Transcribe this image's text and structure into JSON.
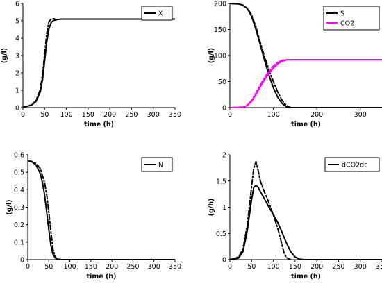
{
  "chart_data": [
    {
      "type": "line",
      "xlabel": "time (h)",
      "ylabel": "(g/l)",
      "xlim": [
        0,
        350
      ],
      "ylim": [
        0,
        6
      ],
      "xticks": [
        0,
        50,
        100,
        150,
        200,
        250,
        300,
        350
      ],
      "yticks": [
        0,
        1,
        2,
        3,
        4,
        5,
        6
      ],
      "legend_position": "top-right",
      "series": [
        {
          "name": "X",
          "style": "solid",
          "color": "#000000",
          "x": [
            0,
            10,
            20,
            30,
            40,
            45,
            50,
            55,
            60,
            65,
            70,
            80,
            90,
            100,
            150,
            200,
            250,
            300,
            350
          ],
          "y": [
            0.05,
            0.08,
            0.15,
            0.35,
            0.9,
            1.6,
            2.7,
            3.8,
            4.55,
            4.9,
            5.02,
            5.08,
            5.1,
            5.1,
            5.1,
            5.1,
            5.1,
            5.1,
            5.1
          ]
        },
        {
          "name": "",
          "style": "dashdot",
          "color": "#000000",
          "x": [
            0,
            10,
            20,
            30,
            40,
            45,
            50,
            55,
            60,
            65,
            70,
            75
          ],
          "y": [
            0.05,
            0.08,
            0.16,
            0.4,
            1.05,
            1.9,
            3.1,
            4.3,
            4.95,
            5.1,
            5.12,
            5.12
          ]
        }
      ]
    },
    {
      "type": "line",
      "xlabel": "time (h)",
      "ylabel": "(g/l)",
      "xlim": [
        0,
        350
      ],
      "ylim": [
        0,
        200
      ],
      "xticks": [
        0,
        100,
        200,
        300
      ],
      "yticks": [
        0,
        50,
        100,
        150,
        200
      ],
      "legend_position": "top-right",
      "series": [
        {
          "name": "S",
          "style": "solid",
          "color": "#000000",
          "x": [
            0,
            20,
            30,
            40,
            50,
            60,
            70,
            80,
            90,
            100,
            110,
            120,
            130,
            140,
            150,
            350
          ],
          "y": [
            200,
            199,
            197,
            190,
            175,
            150,
            120,
            90,
            62,
            38,
            20,
            8,
            2,
            0,
            0,
            0
          ]
        },
        {
          "name": "",
          "style": "dashdot",
          "color": "#000000",
          "x": [
            0,
            20,
            30,
            40,
            50,
            60,
            70,
            80,
            90,
            100,
            110,
            120,
            130,
            140,
            150
          ],
          "y": [
            200,
            199,
            197,
            191,
            178,
            155,
            125,
            97,
            72,
            50,
            30,
            14,
            4,
            0,
            0
          ]
        },
        {
          "name": "CO2",
          "style": "solid",
          "color": "#ff00ff",
          "x": [
            0,
            30,
            40,
            50,
            60,
            70,
            80,
            90,
            100,
            110,
            120,
            130,
            140,
            150,
            200,
            250,
            300,
            350
          ],
          "y": [
            0,
            1,
            4,
            12,
            25,
            40,
            54,
            66,
            76,
            84,
            89,
            91.5,
            92,
            92,
            92,
            92,
            92,
            92
          ]
        },
        {
          "name": "",
          "style": "dashdot",
          "color": "#ff00ff",
          "x": [
            0,
            30,
            40,
            50,
            60,
            70,
            80,
            90,
            100,
            110,
            120,
            130,
            140
          ],
          "y": [
            0,
            1,
            5,
            14,
            28,
            44,
            58,
            70,
            80,
            87,
            91,
            92,
            92
          ]
        }
      ]
    },
    {
      "type": "line",
      "xlabel": "time (h)",
      "ylabel": "(g/l)",
      "xlim": [
        0,
        350
      ],
      "ylim": [
        0,
        0.6
      ],
      "xticks": [
        0,
        50,
        100,
        150,
        200,
        250,
        300,
        350
      ],
      "yticks": [
        0,
        0.1,
        0.2,
        0.3,
        0.4,
        0.5,
        0.6
      ],
      "legend_position": "top-right",
      "series": [
        {
          "name": "N",
          "style": "solid",
          "color": "#000000",
          "x": [
            0,
            10,
            20,
            30,
            35,
            40,
            45,
            50,
            55,
            60,
            65,
            70,
            80,
            100,
            150,
            200,
            250,
            300,
            350
          ],
          "y": [
            0.565,
            0.56,
            0.54,
            0.49,
            0.44,
            0.37,
            0.27,
            0.17,
            0.08,
            0.03,
            0.01,
            0.003,
            0,
            0,
            0,
            0,
            0,
            0,
            0
          ]
        },
        {
          "name": "",
          "style": "dashdot",
          "color": "#000000",
          "x": [
            0,
            10,
            20,
            30,
            40,
            45,
            50,
            55,
            60,
            65,
            70,
            80
          ],
          "y": [
            0.565,
            0.562,
            0.55,
            0.52,
            0.44,
            0.37,
            0.27,
            0.16,
            0.06,
            0.015,
            0.003,
            0
          ]
        }
      ]
    },
    {
      "type": "line",
      "xlabel": "time (h)",
      "ylabel": "(g/h)",
      "xlim": [
        0,
        350
      ],
      "ylim": [
        0,
        2
      ],
      "xticks": [
        0,
        50,
        100,
        150,
        200,
        250,
        300,
        350
      ],
      "yticks": [
        0,
        0.5,
        1,
        1.5,
        2
      ],
      "legend_position": "top-right",
      "series": [
        {
          "name": "dCO2dt",
          "style": "solid",
          "color": "#000000",
          "x": [
            0,
            20,
            30,
            40,
            50,
            55,
            60,
            65,
            70,
            80,
            90,
            100,
            110,
            120,
            130,
            140,
            150,
            160,
            170,
            350
          ],
          "y": [
            0,
            0.03,
            0.15,
            0.55,
            1.15,
            1.38,
            1.42,
            1.38,
            1.3,
            1.15,
            1.0,
            0.86,
            0.71,
            0.52,
            0.32,
            0.15,
            0.05,
            0.01,
            0,
            0
          ]
        },
        {
          "name": "",
          "style": "dashdot",
          "color": "#000000",
          "x": [
            0,
            20,
            30,
            40,
            50,
            55,
            60,
            65,
            70,
            80,
            90,
            100,
            110,
            120,
            125,
            130,
            140
          ],
          "y": [
            0,
            0.05,
            0.2,
            0.65,
            1.4,
            1.75,
            1.87,
            1.7,
            1.5,
            1.28,
            1.08,
            0.85,
            0.6,
            0.28,
            0.12,
            0.04,
            0
          ]
        }
      ]
    }
  ]
}
